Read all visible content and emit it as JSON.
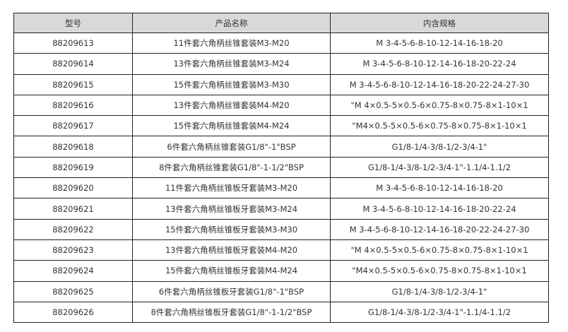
{
  "table": {
    "headers": [
      "型号",
      "产品名称",
      "内含规格"
    ],
    "rows": [
      [
        "88209613",
        "11件套六角柄丝锥套装M3-M20",
        "M 3-4-5-6-8-10-12-14-16-18-20"
      ],
      [
        "88209614",
        "13件套六角柄丝锥套装M3-M24",
        "M 3-4-5-6-8-10-12-14-16-18-20-22-24"
      ],
      [
        "88209615",
        "15件套六角柄丝锥套装M3-M30",
        "M 3-4-5-6-8-10-12-14-16-18-20-22-24-27-30"
      ],
      [
        "88209616",
        "13件套六角柄丝锥套装M4-M20",
        "\"M 4×0.5-5×0.5-6×0.75-8×0.75-8×1-10×1"
      ],
      [
        "88209617",
        "15件套六角柄丝锥套装M4-M24",
        "\"M4×0.5-5×0.5-6×0.75-8×0.75-8×1-10×1"
      ],
      [
        "88209618",
        "6件套六角柄丝锥套装G1/8\"-1\"BSP",
        "G1/8-1/4-3/8-1/2-3/4-1\""
      ],
      [
        "88209619",
        "8件套六角柄丝锥套装G1/8\"-1-1/2\"BSP",
        "G1/8-1/4-3/8-1/2-3/4-1\"-1.1/4-1.1/2"
      ],
      [
        "88209620",
        "11件套六角柄丝锥板牙套装M3-M20",
        "M 3-4-5-6-8-10-12-14-16-18-20"
      ],
      [
        "88209621",
        "13件套六角柄丝锥板牙套装M3-M24",
        "M 3-4-5-6-8-10-12-14-16-18-20-22-24"
      ],
      [
        "88209622",
        "15件套六角柄丝锥板牙套装M3-M30",
        "M 3-4-5-6-8-10-12-14-16-18-20-22-24-27-30"
      ],
      [
        "88209623",
        "13件套六角柄丝锥板牙套装M4-M20",
        "\"M 4×0.5-5×0.5-6×0.75-8×0.75-8×1-10×1"
      ],
      [
        "88209624",
        "15件套六角柄丝锥板牙套装M4-M24",
        "\"M4×0.5-5×0.5-6×0.75-8×0.75-8×1-10×1"
      ],
      [
        "88209625",
        "6件套六角柄丝锥板牙套装G1/8\"-1\"BSP",
        "G1/8-1/4-3/8-1/2-3/4-1\""
      ],
      [
        "88209626",
        "8件套六角柄丝锥板牙套装G1/8\"-1-1/2\"BSP",
        "G1/8-1/4-3/8-1/2-3/4-1\"-1.1/4-1.1/2"
      ]
    ]
  }
}
